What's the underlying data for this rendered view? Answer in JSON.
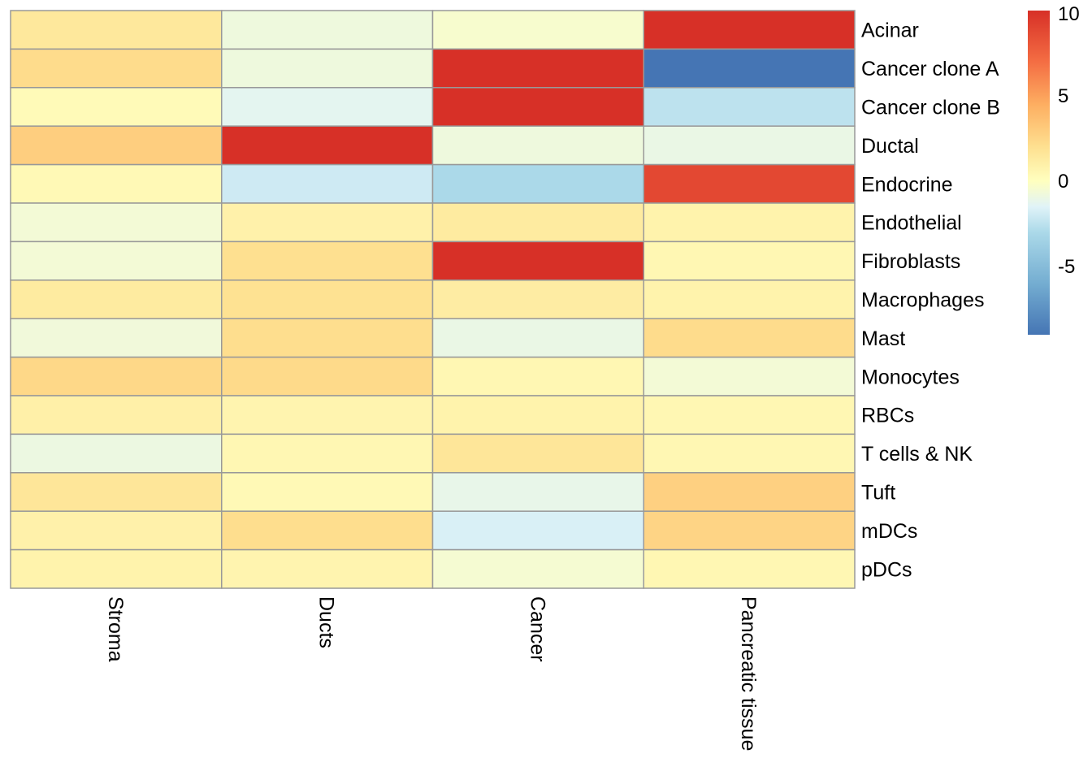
{
  "chart_data": {
    "type": "heatmap",
    "title": "",
    "xlabel": "",
    "ylabel": "",
    "columns": [
      "Stroma",
      "Ducts",
      "Cancer",
      "Pancreatic tissue"
    ],
    "rows": [
      "Acinar",
      "Cancer clone A",
      "Cancer clone B",
      "Ductal",
      "Endocrine",
      "Endothelial",
      "Fibroblasts",
      "Macrophages",
      "Mast",
      "Monocytes",
      "RBCs",
      "T cells & NK",
      "Tuft",
      "mDCs",
      "pDCs"
    ],
    "values": [
      [
        1.5,
        -0.8,
        -0.4,
        10
      ],
      [
        2.2,
        -0.8,
        10,
        -9
      ],
      [
        0.3,
        -1.3,
        10,
        -2.5
      ],
      [
        2.9,
        10,
        -0.8,
        -1.0
      ],
      [
        0.4,
        -2.0,
        -3.0,
        8.8
      ],
      [
        -0.6,
        0.9,
        1.3,
        0.8
      ],
      [
        -0.6,
        2.0,
        10,
        0.5
      ],
      [
        1.3,
        1.9,
        1.2,
        0.8
      ],
      [
        -0.7,
        2.1,
        -1.0,
        2.2
      ],
      [
        2.4,
        2.3,
        0.5,
        -0.6
      ],
      [
        1.0,
        0.7,
        0.8,
        0.5
      ],
      [
        -0.9,
        0.5,
        1.6,
        0.5
      ],
      [
        1.6,
        0.4,
        -1.1,
        2.8
      ],
      [
        0.9,
        2.1,
        -1.7,
        2.6
      ],
      [
        0.8,
        0.7,
        -0.5,
        0.5
      ]
    ],
    "color_scale": {
      "min": -9,
      "max": 10,
      "ticks": [
        -5,
        0,
        5,
        10
      ],
      "stops": [
        {
          "value": -9,
          "color": "#4575b4"
        },
        {
          "value": -6,
          "color": "#74add1"
        },
        {
          "value": -3,
          "color": "#abd9e9"
        },
        {
          "value": -1.5,
          "color": "#e0f3f8"
        },
        {
          "value": 0,
          "color": "#ffffbf"
        },
        {
          "value": 2,
          "color": "#fee090"
        },
        {
          "value": 4.5,
          "color": "#fdae61"
        },
        {
          "value": 7,
          "color": "#f46d43"
        },
        {
          "value": 10,
          "color": "#d73027"
        }
      ]
    },
    "legend": "right",
    "grid_color": "#999999"
  }
}
